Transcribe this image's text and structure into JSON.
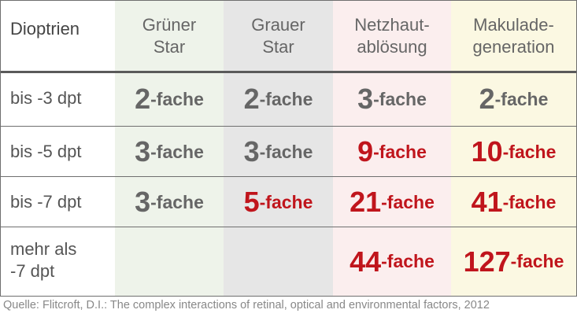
{
  "table": {
    "headers": [
      "Dioptrien",
      "Grüner\nStar",
      "Grauer\nStar",
      "Netzhaut-\nablösung",
      "Makulade-\ngeneration"
    ],
    "rows": [
      {
        "label": "bis -3 dpt",
        "cells": [
          {
            "num": "2",
            "suffix": "-fache",
            "tone": "gray"
          },
          {
            "num": "2",
            "suffix": "-fache",
            "tone": "gray"
          },
          {
            "num": "3",
            "suffix": "-fache",
            "tone": "gray"
          },
          {
            "num": "2",
            "suffix": "-fache",
            "tone": "gray"
          }
        ]
      },
      {
        "label": "bis -5 dpt",
        "cells": [
          {
            "num": "3",
            "suffix": "-fache",
            "tone": "gray"
          },
          {
            "num": "3",
            "suffix": "-fache",
            "tone": "gray"
          },
          {
            "num": "9",
            "suffix": "-fache",
            "tone": "red"
          },
          {
            "num": "10",
            "suffix": "-fache",
            "tone": "red"
          }
        ]
      },
      {
        "label": "bis -7 dpt",
        "cells": [
          {
            "num": "3",
            "suffix": "-fache",
            "tone": "gray"
          },
          {
            "num": "5",
            "suffix": "-fache",
            "tone": "red"
          },
          {
            "num": "21",
            "suffix": "-fache",
            "tone": "red"
          },
          {
            "num": "41",
            "suffix": "-fache",
            "tone": "red"
          }
        ]
      },
      {
        "label": "mehr als\n -7 dpt",
        "cells": [
          {
            "num": "",
            "suffix": "",
            "tone": "gray"
          },
          {
            "num": "",
            "suffix": "",
            "tone": "gray"
          },
          {
            "num": "44",
            "suffix": "-fache",
            "tone": "red"
          },
          {
            "num": "127",
            "suffix": "-fache",
            "tone": "red"
          }
        ]
      }
    ]
  },
  "caption": "Quelle: Flitcroft, D.I.: The complex interactions of retinal, optical and environmental factors, 2012",
  "colors": {
    "highlight_red": "#c0151c",
    "text_gray": "#666666",
    "col_gruener_star_bg": "#eef3ea",
    "col_grauer_star_bg": "#e6e6e6",
    "col_netzhaut_bg": "#fbeeee",
    "col_makula_bg": "#fbf8e2"
  }
}
